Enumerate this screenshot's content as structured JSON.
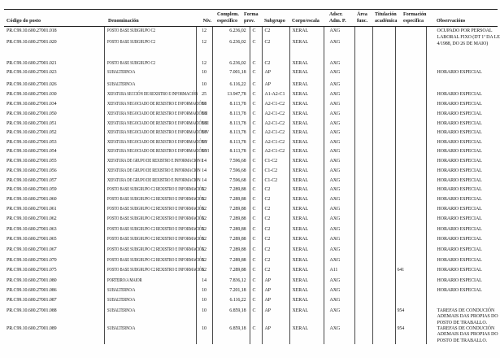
{
  "page": {
    "background": "#fefefe",
    "text_color": "#151515",
    "rule_color": "#222222"
  },
  "table": {
    "columns": [
      {
        "id": "codigo",
        "line1": "",
        "line2": "Código do posto"
      },
      {
        "id": "denominacion",
        "line1": "",
        "line2": "Denominación"
      },
      {
        "id": "niv",
        "line1": "",
        "line2": "Niv."
      },
      {
        "id": "complemento",
        "line1": "Complem.",
        "line2": "específico"
      },
      {
        "id": "forma",
        "line1": "Forma",
        "line2": "prov."
      },
      {
        "id": "subgrupo",
        "line1": "",
        "line2": "Subgrupo"
      },
      {
        "id": "corpo",
        "line1": "",
        "line2": "Corpo/escala"
      },
      {
        "id": "adscricion",
        "line1": "Adscr.",
        "line2": "Adm. P."
      },
      {
        "id": "area",
        "line1": "Área",
        "line2": "func."
      },
      {
        "id": "titulacion",
        "line1": "Titulación",
        "line2": "académica"
      },
      {
        "id": "formacion",
        "line1": "Formación",
        "line2": "específica"
      },
      {
        "id": "observacions",
        "line1": "",
        "line2": "Observacións"
      }
    ],
    "rows": [
      {
        "codigo": "PR.C99.10.600.27001.018",
        "denominacion": "POSTO BASE SUBGRUPO C2",
        "niv": "12",
        "complemento": "6.236,02",
        "forma": "C",
        "subgrupo": "C2",
        "corpo": "XERAL",
        "adscricion": "AXG",
        "observacions": "OCUPADO POR PERSOAL LABORAL FIXO (DT 1ª DA LEI 4/1988, DO 26 DE MAIO)"
      },
      {
        "codigo": "PR.C99.10.600.27001.020",
        "denominacion": "POSTO BASE SUBGRUPO C2",
        "niv": "12",
        "complemento": "6.236,02",
        "forma": "C",
        "subgrupo": "C2",
        "corpo": "XERAL",
        "adscricion": "AXG"
      },
      {
        "codigo": "PR.C99.10.600.27001.021",
        "denominacion": "POSTO BASE SUBGRUPO C2",
        "niv": "12",
        "complemento": "6.236,02",
        "forma": "C",
        "subgrupo": "C2",
        "corpo": "XERAL",
        "adscricion": "AXG"
      },
      {
        "codigo": "PR.C99.10.600.27001.023",
        "denominacion": "SUBALTERNO/A",
        "niv": "10",
        "complemento": "7.001,18",
        "forma": "C",
        "subgrupo": "AP",
        "corpo": "XERAL",
        "adscricion": "AXG",
        "observacions": "HORARIO ESPECIAL"
      },
      {
        "codigo": "PR.C99.10.600.27001.026",
        "denominacion": "SUBALTERNO/A",
        "niv": "10",
        "complemento": "6.116,22",
        "forma": "C",
        "subgrupo": "AP",
        "corpo": "XERAL",
        "adscricion": "AXG"
      },
      {
        "codigo": "PR.C99.10.600.27001.030",
        "denominacion": "XEFATURA SECCIÓN DE REXISTRO E INFORMACIÓN",
        "niv": "25",
        "complemento": "13.947,78",
        "forma": "C",
        "subgrupo": "A1-A2-C1",
        "corpo": "XERAL",
        "adscricion": "AXG",
        "observacions": "HORARIO ESPECIAL"
      },
      {
        "codigo": "PR.C99.10.600.27001.034",
        "denominacion": "XEFATURA NEGOCIADO DE REXISTRO E INFORMACIÓN I",
        "niv": "18",
        "complemento": "8.113,78",
        "forma": "C",
        "subgrupo": "A2-C1-C2",
        "corpo": "XERAL",
        "adscricion": "AXG",
        "observacions": "HORARIO ESPECIAL"
      },
      {
        "codigo": "PR.C99.10.600.27001.050",
        "denominacion": "XEFATURA NEGOCIADO DE REXISTRO E INFORMACIÓN II",
        "niv": "18",
        "complemento": "8.113,78",
        "forma": "C",
        "subgrupo": "A2-C1-C2",
        "corpo": "XERAL",
        "adscricion": "AXG",
        "observacions": "HORARIO ESPECIAL"
      },
      {
        "codigo": "PR.C99.10.600.27001.051",
        "denominacion": "XEFATURA NEGOCIADO DE REXISTRO E INFORMACIÓN III",
        "niv": "18",
        "complemento": "8.113,78",
        "forma": "C",
        "subgrupo": "A2-C1-C2",
        "corpo": "XERAL",
        "adscricion": "AXG",
        "observacions": "HORARIO ESPECIAL"
      },
      {
        "codigo": "PR.C99.10.600.27001.052",
        "denominacion": "XEFATURA NEGOCIADO DE REXISTRO E INFORMACIÓN IV",
        "niv": "18",
        "complemento": "8.113,78",
        "forma": "C",
        "subgrupo": "A2-C1-C2",
        "corpo": "XERAL",
        "adscricion": "AXG",
        "observacions": "HORARIO ESPECIAL"
      },
      {
        "codigo": "PR.C99.10.600.27001.053",
        "denominacion": "XEFATURA NEGOCIADO DE REXISTRO E INFORMACIÓN V",
        "niv": "18",
        "complemento": "8.113,78",
        "forma": "C",
        "subgrupo": "A2-C1-C2",
        "corpo": "XERAL",
        "adscricion": "AXG",
        "observacions": "HORARIO ESPECIAL"
      },
      {
        "codigo": "PR.C99.10.600.27001.054",
        "denominacion": "XEFATURA NEGOCIADO DE REXISTRO E INFORMACIÓN VI",
        "niv": "18",
        "complemento": "8.113,78",
        "forma": "C",
        "subgrupo": "A2-C1-C2",
        "corpo": "XERAL",
        "adscricion": "AXG",
        "observacions": "HORARIO ESPECIAL"
      },
      {
        "codigo": "PR.C99.10.600.27001.055",
        "denominacion": "XEFATURA DE GRUPO DE REXISTRO E INFORMACIÓN I",
        "niv": "14",
        "complemento": "7.596,68",
        "forma": "C",
        "subgrupo": "C1-C2",
        "corpo": "XERAL",
        "adscricion": "AXG",
        "observacions": "HORARIO ESPECIAL"
      },
      {
        "codigo": "PR.C99.10.600.27001.056",
        "denominacion": "XEFATURA DE GRUPO DE REXISTRO E INFORMACIÓN",
        "niv": "14",
        "complemento": "7.596,68",
        "forma": "C",
        "subgrupo": "C1-C2",
        "corpo": "XERAL",
        "adscricion": "AXG",
        "observacions": "HORARIO ESPECIAL"
      },
      {
        "codigo": "PR.C99.10.600.27001.057",
        "denominacion": "XEFATURA DE GRUPO DE REXISTRO E INFORMACIÓN",
        "niv": "14",
        "complemento": "7.596,68",
        "forma": "C",
        "subgrupo": "C1-C2",
        "corpo": "XERAL",
        "adscricion": "AXG",
        "observacions": "HORARIO ESPECIAL"
      },
      {
        "codigo": "PR.C99.10.600.27001.059",
        "denominacion": "POSTO BASE SUBGRUPO C2 REXISTRO E INFORMACIÓN",
        "niv": "12",
        "complemento": "7.289,88",
        "forma": "C",
        "subgrupo": "C2",
        "corpo": "XERAL",
        "adscricion": "AXG",
        "observacions": "HORARIO ESPECIAL"
      },
      {
        "codigo": "PR.C99.10.600.27001.060",
        "denominacion": "POSTO BASE SUBGRUPO C2 REXISTRO E INFORMACIÓN",
        "niv": "12",
        "complemento": "7.289,88",
        "forma": "C",
        "subgrupo": "C2",
        "corpo": "XERAL",
        "adscricion": "AXG",
        "observacions": "HORARIO ESPECIAL"
      },
      {
        "codigo": "PR.C99.10.600.27001.061",
        "denominacion": "POSTO BASE SUBGRUPO C2 REXISTRO E INFORMACIÓN",
        "niv": "12",
        "complemento": "7.289,88",
        "forma": "C",
        "subgrupo": "C2",
        "corpo": "XERAL",
        "adscricion": "AXG",
        "observacions": "HORARIO ESPECIAL"
      },
      {
        "codigo": "PR.C99.10.600.27001.062",
        "denominacion": "POSTO BASE SUBGRUPO C2 REXISTRO E INFORMACIÓN",
        "niv": "12",
        "complemento": "7.289,88",
        "forma": "C",
        "subgrupo": "C2",
        "corpo": "XERAL",
        "adscricion": "AXG",
        "observacions": "HORARIO ESPECIAL"
      },
      {
        "codigo": "PR.C99.10.600.27001.063",
        "denominacion": "POSTO BASE SUBGRUPO C2 REXISTRO E INFORMACIÓN",
        "niv": "12",
        "complemento": "7.289,88",
        "forma": "C",
        "subgrupo": "C2",
        "corpo": "XERAL",
        "adscricion": "AXG",
        "observacions": "HORARIO ESPECIAL"
      },
      {
        "codigo": "PR.C99.10.600.27001.065",
        "denominacion": "POSTO BASE SUBGRUPO C2 REXISTRO E INFORMACIÓN",
        "niv": "12",
        "complemento": "7.289,88",
        "forma": "C",
        "subgrupo": "C2",
        "corpo": "XERAL",
        "adscricion": "AXG",
        "observacions": "HORARIO ESPECIAL"
      },
      {
        "codigo": "PR.C99.10.600.27001.067",
        "denominacion": "POSTO BASE SUBGRUPO C2 REXISTRO E INFORMACIÓN",
        "niv": "12",
        "complemento": "7.289,88",
        "forma": "C",
        "subgrupo": "C2",
        "corpo": "XERAL",
        "adscricion": "AXG",
        "observacions": "HORARIO ESPECIAL"
      },
      {
        "codigo": "PR.C99.10.600.27001.070",
        "denominacion": "POSTO BASE SUBGRUPO C2 REXISTRO E INFORMACIÓN",
        "niv": "12",
        "complemento": "7.289,88",
        "forma": "C",
        "subgrupo": "C2",
        "corpo": "XERAL",
        "adscricion": "AXG",
        "observacions": "HORARIO ESPECIAL"
      },
      {
        "codigo": "PR.C99.10.600.27001.075",
        "denominacion": "POSTO BASE SUBGRUPO C2 REXISTRO E INFORMACIÓN",
        "niv": "12",
        "complemento": "7.289,88",
        "forma": "C",
        "subgrupo": "C2",
        "corpo": "XERAL",
        "adscricion": "A11",
        "formacion": "641",
        "observacions": "HORARIO ESPECIAL"
      },
      {
        "codigo": "PR.C99.10.600.27001.080",
        "denominacion": "PORTEIRO/A MAIOR",
        "niv": "14",
        "complemento": "7.836,12",
        "forma": "C",
        "subgrupo": "AP",
        "corpo": "XERAL",
        "adscricion": "AXG",
        "observacions": "HORARIO ESPECIAL"
      },
      {
        "codigo": "PR.C99.10.600.27001.086",
        "denominacion": "SUBALTERNO/A",
        "niv": "10",
        "complemento": "7.201,18",
        "forma": "C",
        "subgrupo": "AP",
        "corpo": "XERAL",
        "adscricion": "AXG",
        "observacions": "HORARIO ESPECIAL"
      },
      {
        "codigo": "PR.C99.10.600.27001.087",
        "denominacion": "SUBALTERNO/A",
        "niv": "10",
        "complemento": "6.116,22",
        "forma": "C",
        "subgrupo": "AP",
        "corpo": "XERAL",
        "adscricion": "AXG"
      },
      {
        "codigo": "PR.C99.10.600.27001.088",
        "denominacion": "SUBALTERNO/A",
        "niv": "10",
        "complemento": "6.859,18",
        "forma": "C",
        "subgrupo": "AP",
        "corpo": "XERAL",
        "adscricion": "AXG",
        "formacion": "954",
        "observacions": "TAREFAS DE CONDUCIÓN ADEMAIS DAS PROPIAS DO POSTO DE TRABALLO."
      },
      {
        "codigo": "PR.C99.10.600.27001.089",
        "denominacion": "SUBALTERNO/A",
        "niv": "10",
        "complemento": "6.859,18",
        "forma": "C",
        "subgrupo": "AP",
        "corpo": "XERAL",
        "adscricion": "AXG",
        "formacion": "954",
        "observacions": "TAREFAS DE CONDUCIÓN ADEMAIS DAS PROPIAS DO POSTO DE TRABALLO."
      }
    ]
  }
}
